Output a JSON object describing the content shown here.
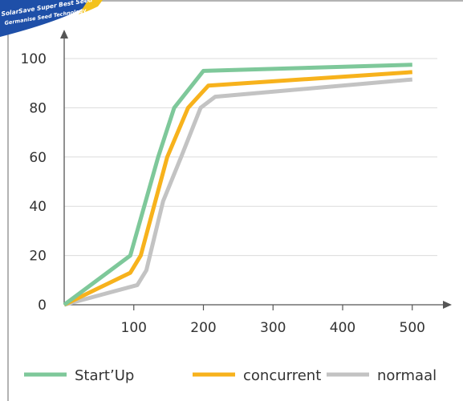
{
  "chart_data": {
    "type": "line",
    "title": "",
    "xlabel": "",
    "ylabel": "",
    "x_tick_labels": [
      "100",
      "200",
      "300",
      "400",
      "500"
    ],
    "y_ticks": [
      0,
      20,
      40,
      60,
      80,
      100
    ],
    "ylim": [
      0,
      100
    ],
    "grid": "horizontal",
    "legend_position": "bottom",
    "series": [
      {
        "name": "Start’Up",
        "color": "#7ec89a",
        "points": [
          [
            0,
            0
          ],
          [
            95,
            20
          ],
          [
            135,
            60
          ],
          [
            158,
            80
          ],
          [
            200,
            95
          ],
          [
            500,
            97.5
          ]
        ]
      },
      {
        "name": "concurrent",
        "color": "#f7b21c",
        "points": [
          [
            0,
            0
          ],
          [
            95,
            13
          ],
          [
            110,
            20
          ],
          [
            148,
            60
          ],
          [
            178,
            80
          ],
          [
            207,
            89
          ],
          [
            500,
            94.5
          ]
        ]
      },
      {
        "name": "normaal",
        "color": "#c3c3c3",
        "points": [
          [
            0,
            0
          ],
          [
            105,
            8
          ],
          [
            118,
            14
          ],
          [
            142,
            42
          ],
          [
            168,
            60
          ],
          [
            196,
            80
          ],
          [
            217,
            84.5
          ],
          [
            500,
            91.5
          ]
        ]
      }
    ]
  },
  "logo": {
    "line1": "SolarSave Super Best Seed",
    "line2": "Germanise Seed Technology"
  }
}
